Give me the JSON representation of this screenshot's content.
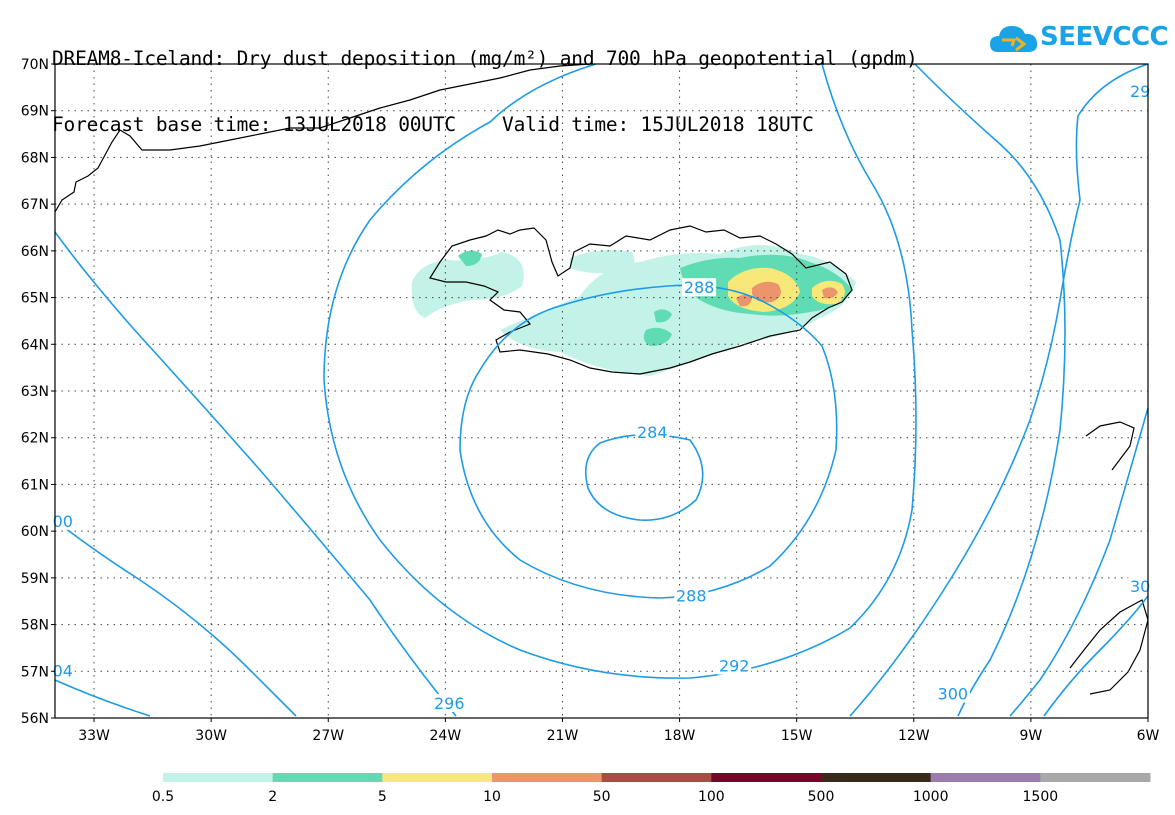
{
  "header": {
    "title_line1": "DREAM8-Iceland: Dry dust deposition (mg/m²) and 700 hPa geopotential (gpdm)",
    "title_line2": "Forecast base time: 13JUL2018 00UTC    Valid time: 15JUL2018 18UTC"
  },
  "logo": {
    "text": "SEEVCCC",
    "icon": "cloud-icon",
    "color": "#1aa3e6"
  },
  "map": {
    "lon_range": [
      -34,
      -6
    ],
    "lat_range": [
      56,
      70
    ],
    "lon_ticks": [
      {
        "v": -33,
        "label": "33W"
      },
      {
        "v": -30,
        "label": "30W"
      },
      {
        "v": -27,
        "label": "27W"
      },
      {
        "v": -24,
        "label": "24W"
      },
      {
        "v": -21,
        "label": "21W"
      },
      {
        "v": -18,
        "label": "18W"
      },
      {
        "v": -15,
        "label": "15W"
      },
      {
        "v": -12,
        "label": "12W"
      },
      {
        "v": -9,
        "label": "9W"
      },
      {
        "v": -6,
        "label": "6W"
      }
    ],
    "lat_ticks": [
      {
        "v": 70,
        "label": "70N"
      },
      {
        "v": 69,
        "label": "69N"
      },
      {
        "v": 68,
        "label": "68N"
      },
      {
        "v": 67,
        "label": "67N"
      },
      {
        "v": 66,
        "label": "66N"
      },
      {
        "v": 65,
        "label": "65N"
      },
      {
        "v": 64,
        "label": "64N"
      },
      {
        "v": 63,
        "label": "63N"
      },
      {
        "v": 62,
        "label": "62N"
      },
      {
        "v": 61,
        "label": "61N"
      },
      {
        "v": 60,
        "label": "60N"
      },
      {
        "v": 59,
        "label": "59N"
      },
      {
        "v": 58,
        "label": "58N"
      },
      {
        "v": 57,
        "label": "57N"
      },
      {
        "v": 56,
        "label": "56N"
      }
    ],
    "grid": true,
    "contour_color": "#1e9be6",
    "contour_labels": [
      {
        "text": "288",
        "lon": -17.5,
        "lat": 65.2
      },
      {
        "text": "284",
        "lon": -18.7,
        "lat": 62.1
      },
      {
        "text": "288",
        "lon": -17.7,
        "lat": 58.6
      },
      {
        "text": "292",
        "lon": -16.6,
        "lat": 57.1
      },
      {
        "text": "296",
        "lon": -23.9,
        "lat": 56.3
      },
      {
        "text": "300",
        "lon": -11.0,
        "lat": 56.5
      },
      {
        "text": "00",
        "lon": -33.8,
        "lat": 60.2
      },
      {
        "text": "04",
        "lon": -33.8,
        "lat": 57.0
      },
      {
        "text": "30",
        "lon": -6.2,
        "lat": 58.8
      },
      {
        "text": "29",
        "lon": -6.2,
        "lat": 69.4
      }
    ]
  },
  "legend": {
    "bins": [
      {
        "color": "#c2f2e8"
      },
      {
        "color": "#5fdcb4"
      },
      {
        "color": "#f8e878"
      },
      {
        "color": "#ec946c"
      },
      {
        "color": "#a84c44"
      },
      {
        "color": "#780428"
      },
      {
        "color": "#3a2a1c"
      },
      {
        "color": "#9c7cac"
      },
      {
        "color": "#a8a8a8"
      }
    ],
    "labels": [
      "0.5",
      "2",
      "5",
      "10",
      "50",
      "100",
      "500",
      "1000",
      "1500"
    ]
  }
}
